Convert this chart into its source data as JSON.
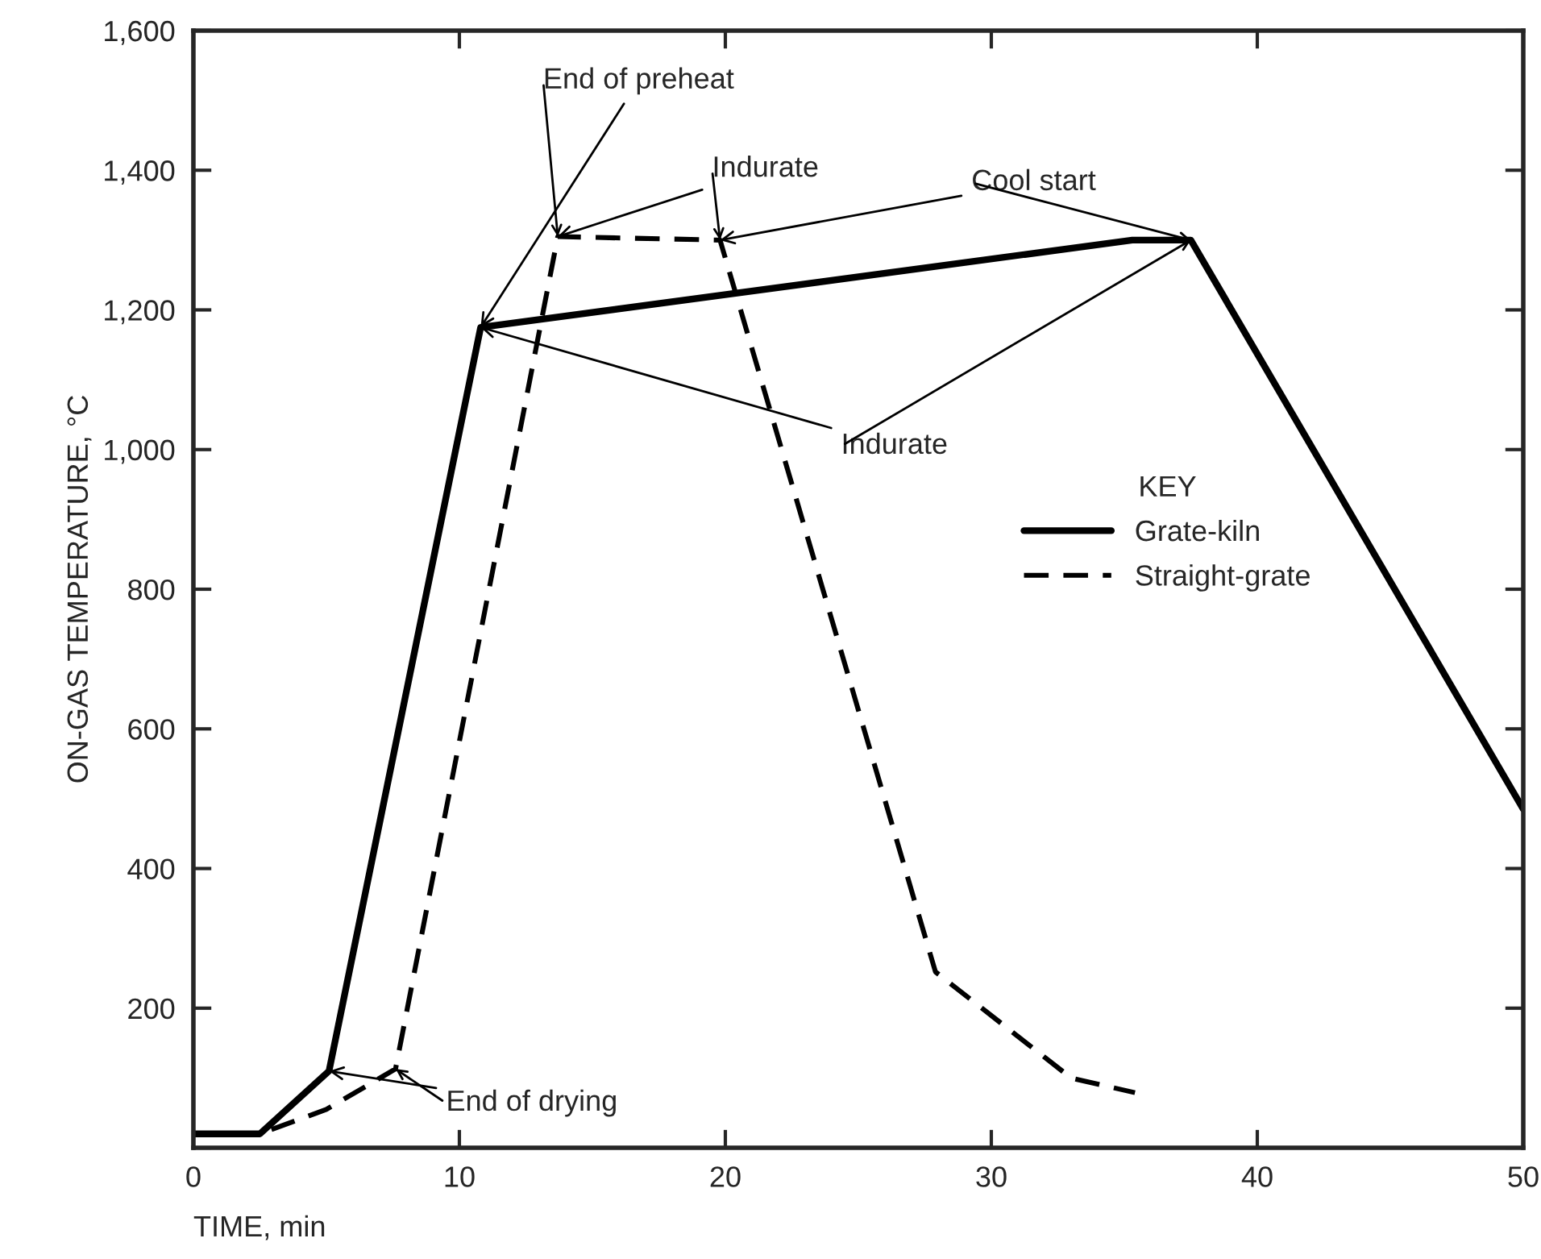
{
  "chart_data": {
    "type": "line",
    "xlabel": "TIME, min",
    "ylabel": "ON-GAS TEMPERATURE, °C",
    "legend_title": "KEY",
    "series": [
      {
        "name": "Grate-kiln",
        "color": "#000000",
        "line_style": "solid",
        "x": [
          0,
          2.5,
          5.1,
          10.8,
          35.3,
          37.5,
          50
        ],
        "values": [
          20,
          20,
          110,
          1175,
          1300,
          1300,
          485
        ]
      },
      {
        "name": "Straight-grate",
        "color": "#000000",
        "line_style": "dashed",
        "x": [
          0,
          2.5,
          5,
          7.6,
          13.7,
          19.8,
          27.9,
          33,
          35.4
        ],
        "values": [
          20,
          20,
          55,
          113,
          1305,
          1300,
          252,
          100,
          79
        ]
      }
    ],
    "xlim": [
      0,
      50
    ],
    "xticks": [
      0,
      10,
      20,
      30,
      40,
      50
    ],
    "ylim": [
      0,
      1600
    ],
    "yticks": [
      {
        "value": 0,
        "label": null
      },
      {
        "value": 200,
        "label": "200"
      },
      {
        "value": 400,
        "label": "400"
      },
      {
        "value": 600,
        "label": "600"
      },
      {
        "value": 800,
        "label": "800"
      },
      {
        "value": 1000,
        "label": "1,000"
      },
      {
        "value": 1200,
        "label": "1,200"
      },
      {
        "value": 1400,
        "label": "1,400"
      },
      {
        "value": 1600,
        "label": "1,600"
      }
    ],
    "grid": false,
    "legend": "right",
    "marker": "none",
    "annotations": [
      {
        "text": "End of preheat",
        "x": 10.8,
        "y": 1175
      },
      {
        "text": "Indurate",
        "x": 13.7,
        "y": 1305
      },
      {
        "text": "Cool start",
        "x": 19.8,
        "y": 1300
      },
      {
        "text": "Indurate",
        "x": 10.8,
        "y": 1175
      },
      {
        "text": "End of drying",
        "x": 5.1,
        "y": 110
      }
    ]
  }
}
